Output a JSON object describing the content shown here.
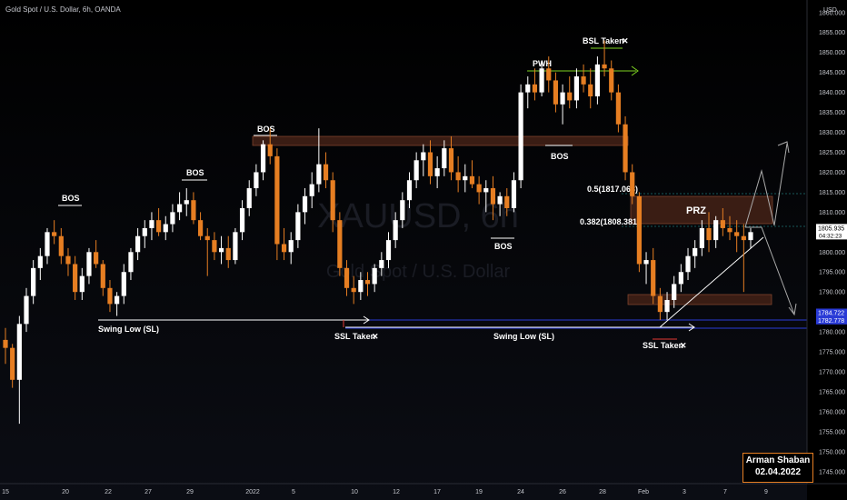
{
  "header": {
    "title": "Gold Spot / U.S. Dollar, 6h, OANDA",
    "currency": "USD"
  },
  "watermark": {
    "symbol": "XAUUSD, 6h",
    "name": "Gold Spot / U.S. Dollar"
  },
  "colors": {
    "bull": "#ffffff",
    "bear": "#e67e22",
    "level_band": "#3a1d14",
    "prz": "#3a1d14",
    "blue_line": "#2a3bd6",
    "green": "#7ed321",
    "red": "#e53935"
  },
  "annotations": {
    "bos1": "BOS",
    "bos2": "BOS",
    "bos3": "BOS",
    "bos4": "BOS",
    "bos5": "BOS",
    "pwh": "PWH",
    "bsl": "BSL Taken",
    "swing_low_1": "Swing Low (SL)",
    "swing_low_2": "Swing Low (SL)",
    "ssl_1": "SSL Taken",
    "ssl_2": "SSL Taken",
    "prz": "PRZ",
    "fib_05": "0.5(1817.063)",
    "fib_0382": "0.382(1808.381)",
    "cross": "✕"
  },
  "signature": {
    "name": "Arman Shaban",
    "date": "02.04.2022"
  },
  "chart_data": {
    "type": "candlestick",
    "title": "Gold Spot / U.S. Dollar, 6h, OANDA",
    "ylim": [
      1742,
      1862
    ],
    "y_ticks": [
      "1860.000",
      "1855.000",
      "1850.000",
      "1845.000",
      "1840.000",
      "1835.000",
      "1830.000",
      "1825.000",
      "1820.000",
      "1815.000",
      "1810.000",
      "1805.000",
      "1800.000",
      "1795.000",
      "1790.000",
      "1785.000",
      "1780.000",
      "1775.000",
      "1770.000",
      "1765.000",
      "1760.000",
      "1755.000",
      "1750.000",
      "1745.000"
    ],
    "x_ticks": [
      "15",
      "20",
      "22",
      "27",
      "29",
      "2022",
      "5",
      "10",
      "12",
      "17",
      "19",
      "24",
      "26",
      "28",
      "Feb",
      "3",
      "7",
      "9"
    ],
    "price_labels": [
      {
        "label": "1805.935",
        "sub": "04:32:23",
        "value": 1805.9
      },
      {
        "label": "1784.722",
        "value": 1784.7
      },
      {
        "label": "1782.778",
        "value": 1782.8
      }
    ],
    "levels": {
      "bos_band": [
        1830,
        1832.5
      ],
      "prz_zone": [
        1809,
        1816
      ],
      "support_zone": [
        1789.5,
        1792
      ],
      "pwh": 1848.5,
      "bsl": 1854,
      "swing_low_1": 1784.5,
      "swing_low_2": 1782.5
    },
    "candles": [
      [
        1778,
        1781,
        1772,
        1776
      ],
      [
        1776,
        1777,
        1766,
        1768
      ],
      [
        1768,
        1784,
        1757,
        1782
      ],
      [
        1782,
        1791,
        1780,
        1789
      ],
      [
        1789,
        1798,
        1787,
        1796
      ],
      [
        1796,
        1801,
        1793,
        1799
      ],
      [
        1799,
        1806,
        1797,
        1805
      ],
      [
        1805,
        1808,
        1802,
        1804
      ],
      [
        1804,
        1806,
        1797,
        1799
      ],
      [
        1799,
        1801,
        1794,
        1797
      ],
      [
        1797,
        1799,
        1788,
        1790
      ],
      [
        1790,
        1796,
        1788,
        1794
      ],
      [
        1794,
        1801,
        1792,
        1800
      ],
      [
        1800,
        1803,
        1796,
        1797
      ],
      [
        1797,
        1798,
        1789,
        1791
      ],
      [
        1791,
        1793,
        1785,
        1787
      ],
      [
        1787,
        1790,
        1784,
        1789
      ],
      [
        1789,
        1797,
        1787,
        1795
      ],
      [
        1795,
        1801,
        1793,
        1800
      ],
      [
        1800,
        1806,
        1798,
        1804
      ],
      [
        1804,
        1808,
        1801,
        1806
      ],
      [
        1806,
        1810,
        1803,
        1808
      ],
      [
        1808,
        1811,
        1804,
        1805
      ],
      [
        1805,
        1809,
        1803,
        1807
      ],
      [
        1807,
        1812,
        1805,
        1810
      ],
      [
        1810,
        1815,
        1808,
        1812
      ],
      [
        1812,
        1816,
        1809,
        1813
      ],
      [
        1813,
        1815,
        1807,
        1808
      ],
      [
        1808,
        1810,
        1803,
        1804
      ],
      [
        1804,
        1806,
        1794,
        1803
      ],
      [
        1803,
        1805,
        1798,
        1800
      ],
      [
        1800,
        1804,
        1797,
        1801
      ],
      [
        1801,
        1804,
        1796,
        1798
      ],
      [
        1798,
        1806,
        1797,
        1805
      ],
      [
        1805,
        1813,
        1803,
        1811
      ],
      [
        1811,
        1818,
        1809,
        1816
      ],
      [
        1816,
        1822,
        1814,
        1820
      ],
      [
        1820,
        1828,
        1818,
        1827
      ],
      [
        1827,
        1831,
        1822,
        1824
      ],
      [
        1824,
        1826,
        1798,
        1802
      ],
      [
        1802,
        1806,
        1798,
        1800
      ],
      [
        1800,
        1805,
        1797,
        1803
      ],
      [
        1803,
        1812,
        1801,
        1810
      ],
      [
        1810,
        1816,
        1807,
        1814
      ],
      [
        1814,
        1820,
        1811,
        1817
      ],
      [
        1817,
        1831,
        1815,
        1822
      ],
      [
        1822,
        1825,
        1816,
        1818
      ],
      [
        1818,
        1820,
        1805,
        1808
      ],
      [
        1808,
        1810,
        1794,
        1796
      ],
      [
        1796,
        1798,
        1789,
        1791
      ],
      [
        1791,
        1794,
        1787,
        1790
      ],
      [
        1790,
        1795,
        1788,
        1793
      ],
      [
        1793,
        1795,
        1789,
        1792
      ],
      [
        1792,
        1797,
        1790,
        1796
      ],
      [
        1796,
        1800,
        1794,
        1798
      ],
      [
        1798,
        1805,
        1796,
        1803
      ],
      [
        1803,
        1810,
        1801,
        1808
      ],
      [
        1808,
        1815,
        1806,
        1813
      ],
      [
        1813,
        1820,
        1811,
        1818
      ],
      [
        1818,
        1825,
        1816,
        1823
      ],
      [
        1823,
        1827,
        1819,
        1825
      ],
      [
        1825,
        1828,
        1817,
        1819
      ],
      [
        1819,
        1824,
        1816,
        1821
      ],
      [
        1821,
        1828,
        1819,
        1826
      ],
      [
        1826,
        1829,
        1818,
        1820
      ],
      [
        1820,
        1824,
        1815,
        1818
      ],
      [
        1818,
        1822,
        1815,
        1819
      ],
      [
        1819,
        1823,
        1816,
        1817
      ],
      [
        1817,
        1819,
        1812,
        1815
      ],
      [
        1815,
        1818,
        1810,
        1816
      ],
      [
        1816,
        1819,
        1808,
        1812
      ],
      [
        1812,
        1815,
        1809,
        1814
      ],
      [
        1814,
        1816,
        1809,
        1811
      ],
      [
        1811,
        1820,
        1810,
        1818
      ],
      [
        1818,
        1842,
        1816,
        1840
      ],
      [
        1840,
        1844,
        1836,
        1842
      ],
      [
        1842,
        1846,
        1838,
        1840
      ],
      [
        1840,
        1848,
        1839,
        1846
      ],
      [
        1846,
        1849,
        1840,
        1843
      ],
      [
        1843,
        1845,
        1835,
        1837
      ],
      [
        1837,
        1842,
        1832,
        1840
      ],
      [
        1840,
        1844,
        1836,
        1838
      ],
      [
        1838,
        1846,
        1836,
        1844
      ],
      [
        1844,
        1847,
        1840,
        1842
      ],
      [
        1842,
        1846,
        1836,
        1839
      ],
      [
        1839,
        1849,
        1837,
        1847
      ],
      [
        1847,
        1853,
        1844,
        1846
      ],
      [
        1846,
        1848,
        1838,
        1840
      ],
      [
        1840,
        1842,
        1830,
        1832
      ],
      [
        1832,
        1834,
        1818,
        1820
      ],
      [
        1820,
        1822,
        1812,
        1814
      ],
      [
        1814,
        1815,
        1795,
        1797
      ],
      [
        1797,
        1800,
        1792,
        1798
      ],
      [
        1798,
        1801,
        1787,
        1789
      ],
      [
        1789,
        1791,
        1783,
        1785
      ],
      [
        1785,
        1790,
        1783,
        1788
      ],
      [
        1788,
        1794,
        1786,
        1792
      ],
      [
        1792,
        1797,
        1790,
        1795
      ],
      [
        1795,
        1801,
        1793,
        1799
      ],
      [
        1799,
        1803,
        1796,
        1801
      ],
      [
        1801,
        1808,
        1799,
        1806
      ],
      [
        1806,
        1810,
        1800,
        1803
      ],
      [
        1803,
        1809,
        1801,
        1808
      ],
      [
        1808,
        1811,
        1804,
        1806
      ],
      [
        1806,
        1809,
        1803,
        1805
      ],
      [
        1805,
        1808,
        1800,
        1804
      ],
      [
        1804,
        1807,
        1790,
        1803
      ],
      [
        1803,
        1806,
        1801,
        1805
      ]
    ]
  }
}
